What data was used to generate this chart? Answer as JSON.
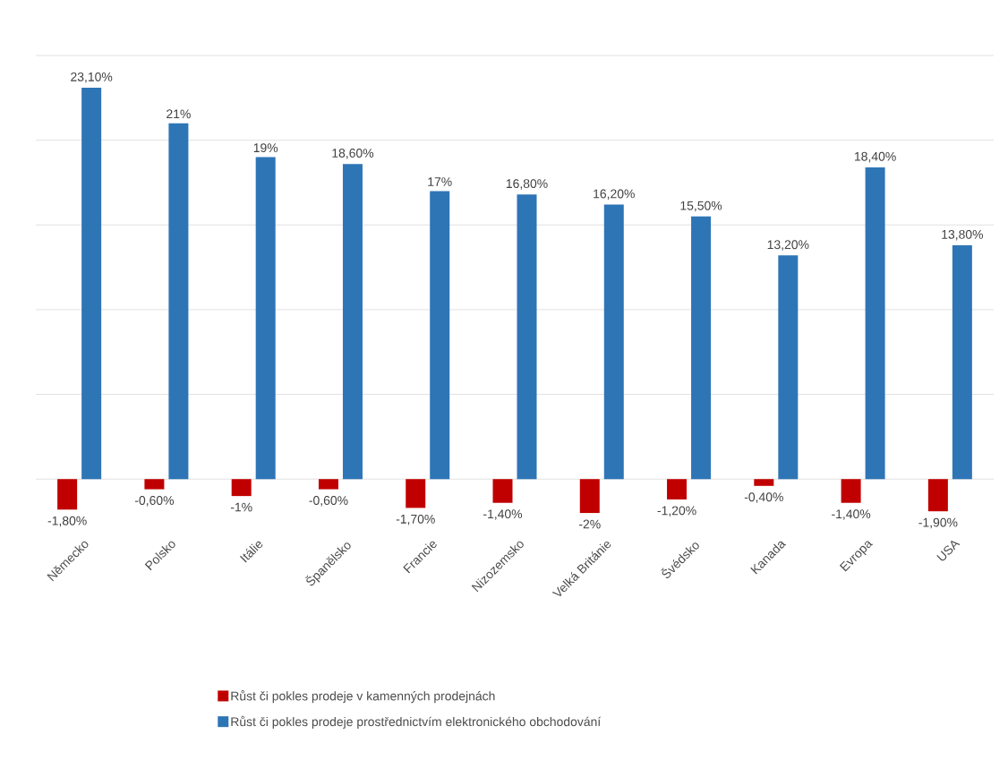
{
  "chart_data": {
    "type": "bar",
    "categories": [
      "Německo",
      "Polsko",
      "Itálie",
      "Španělsko",
      "Francie",
      "Nizozemsko",
      "Velká Británie",
      "Švédsko",
      "Kanada",
      "Evropa",
      "USA"
    ],
    "series": [
      {
        "name": "Růst či pokles prodeje v kamenných prodejnách",
        "color": "#c00000",
        "values": [
          -1.8,
          -0.6,
          -1,
          -0.6,
          -1.7,
          -1.4,
          -2,
          -1.2,
          -0.4,
          -1.4,
          -1.9
        ],
        "value_labels": [
          "-1,80%",
          "-0,60%",
          "-1%",
          "-0,60%",
          "-1,70%",
          "-1,40%",
          "-2%",
          "-1,20%",
          "-0,40%",
          "-1,40%",
          "-1,90%"
        ]
      },
      {
        "name": "Růst či pokles prodeje prostřednictvím elektronického obchodování",
        "color": "#2e75b6",
        "values": [
          23.1,
          21,
          19,
          18.6,
          17,
          16.8,
          16.2,
          15.5,
          13.2,
          18.4,
          13.8
        ],
        "value_labels": [
          "23,10%",
          "21%",
          "19%",
          "18,60%",
          "17%",
          "16,80%",
          "16,20%",
          "15,50%",
          "13,20%",
          "18,40%",
          "13,80%"
        ]
      }
    ],
    "yticks": [
      {
        "value": 0,
        "label": null
      },
      {
        "value": 5,
        "label": null
      },
      {
        "value": 10,
        "label": null
      },
      {
        "value": 15,
        "label": null
      },
      {
        "value": 20,
        "label": null
      },
      {
        "value": 25,
        "label": null
      }
    ],
    "tick_labels": "x",
    "grid": "y",
    "legend": "bottom"
  }
}
